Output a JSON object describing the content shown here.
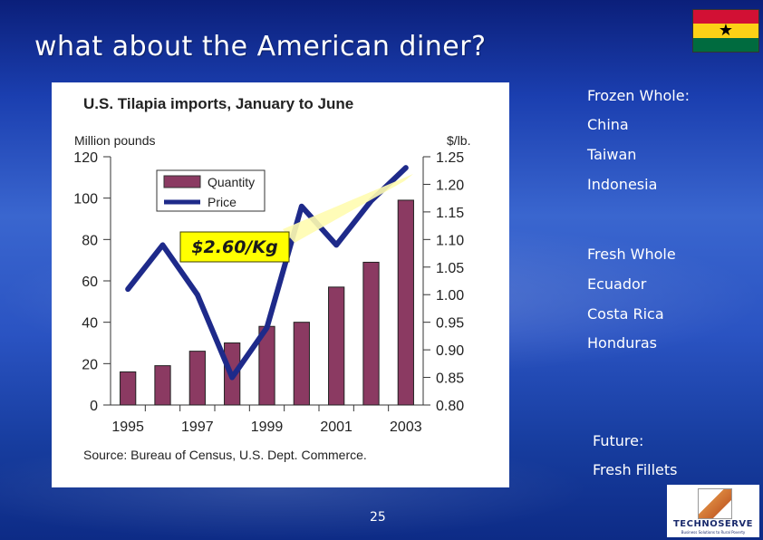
{
  "slide": {
    "title": "what about the American diner?",
    "page_number": "25"
  },
  "flag": {
    "name": "ghana-flag",
    "colors": [
      "#d21034",
      "#fcd116",
      "#006b3f"
    ],
    "star": "★"
  },
  "sidebar": {
    "frozen_heading": "Frozen Whole:",
    "frozen_items": [
      "China",
      "Taiwan",
      "Indonesia"
    ],
    "fresh_heading": "Fresh Whole",
    "fresh_items": [
      "Ecuador",
      "Costa Rica",
      "Honduras"
    ],
    "future_heading": "Future:",
    "future_items": [
      "Fresh Fillets"
    ]
  },
  "callout": {
    "text": "$2.60/Kg",
    "color": "#1a1a1a",
    "bg": "#ffff00"
  },
  "logo": {
    "name": "TECHNOSERVE",
    "tagline": "Business Solutions to Rural Poverty"
  },
  "chart_data": {
    "type": "bar",
    "title": "U.S. Tilapia imports, January to June",
    "left_axis_label": "Million pounds",
    "right_axis_label": "$/lb.",
    "source": "Source: Bureau of Census, U.S. Dept. Commerce.",
    "x": [
      1995,
      1996,
      1997,
      1998,
      1999,
      2000,
      2001,
      2002,
      2003
    ],
    "x_tick_labels": [
      "1995",
      "1997",
      "1999",
      "2001",
      "2003"
    ],
    "ylim_left": [
      0,
      120
    ],
    "yticks_left": [
      0,
      20,
      40,
      60,
      80,
      100,
      120
    ],
    "ylim_right": [
      0.8,
      1.25
    ],
    "yticks_right": [
      "0.80",
      "0.85",
      "0.90",
      "0.95",
      "1.00",
      "1.05",
      "1.10",
      "1.15",
      "1.20",
      "1.25"
    ],
    "series": [
      {
        "name": "Quantity",
        "type": "bar",
        "axis": "left",
        "color": "#8b3a62",
        "values": [
          16,
          19,
          26,
          30,
          38,
          40,
          57,
          69,
          99
        ]
      },
      {
        "name": "Price",
        "type": "line",
        "axis": "right",
        "color": "#1e2a8a",
        "values": [
          1.01,
          1.09,
          1.0,
          0.85,
          0.94,
          1.16,
          1.09,
          1.17,
          1.23
        ]
      }
    ]
  }
}
